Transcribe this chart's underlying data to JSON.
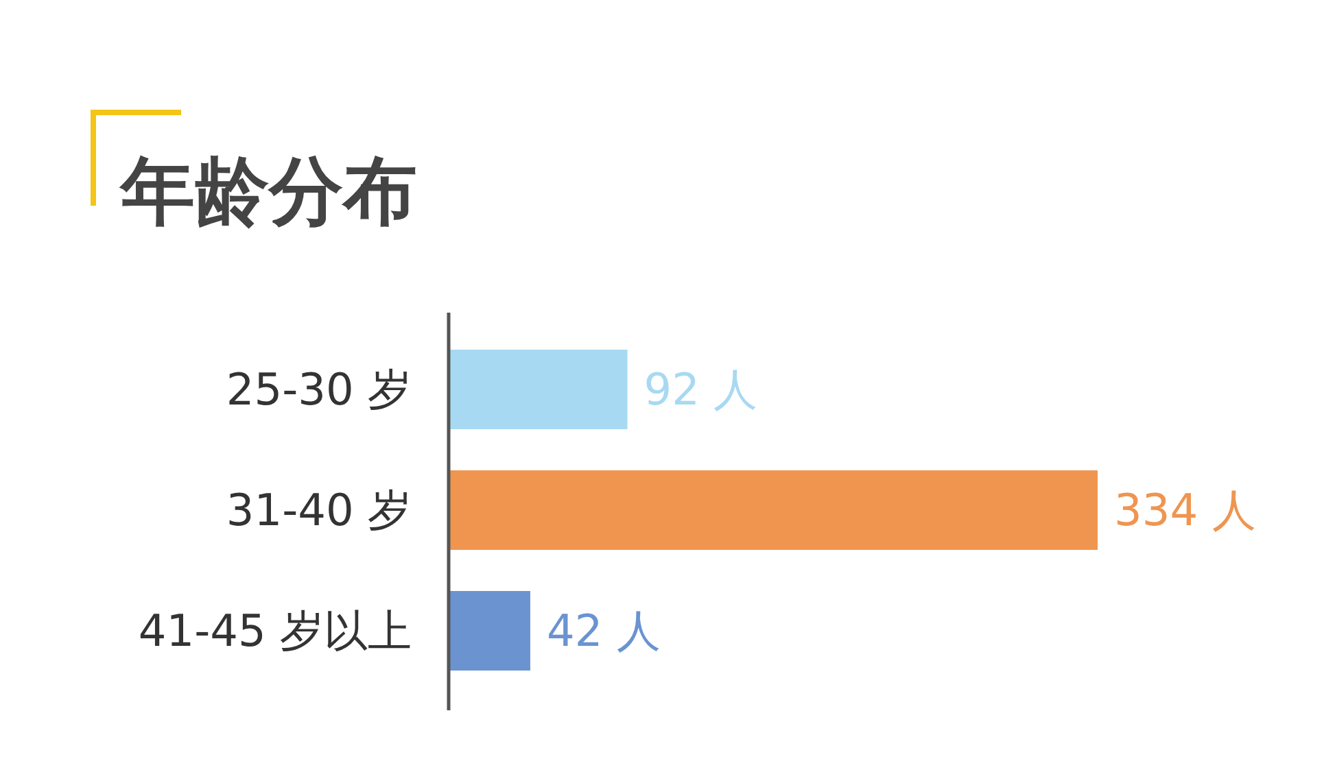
{
  "chart_data": {
    "type": "bar",
    "orientation": "horizontal",
    "title": "年龄分布",
    "categories": [
      "25-30 岁",
      "31-40 岁",
      "41-45 岁以上"
    ],
    "values": [
      92,
      334,
      42
    ],
    "colors": [
      "#a8d9f2",
      "#ef9550",
      "#6a93d0"
    ],
    "value_labels": [
      "92 人",
      "334 人",
      "42 人"
    ]
  }
}
